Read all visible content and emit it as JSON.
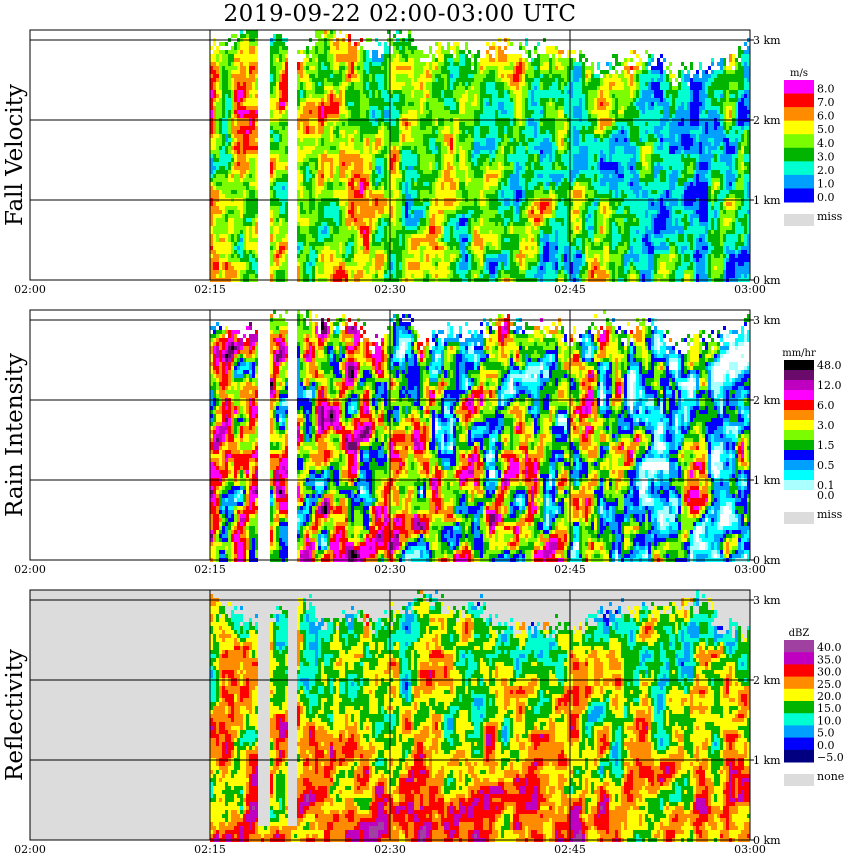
{
  "title": "2019-09-22   02:00-03:00 UTC",
  "chart_data": [
    {
      "type": "heatmap",
      "ylabel": "Fall Velocity",
      "x_ticks": [
        "02:00",
        "02:15",
        "02:30",
        "02:45",
        "03:00"
      ],
      "height_ticks": [
        "0 km",
        "1 km",
        "2 km",
        "3 km"
      ],
      "height_range_km": [
        0,
        3.15
      ],
      "colorbar": {
        "unit": "m/s",
        "entries": [
          {
            "label": "8.0",
            "color": "#ff00ff"
          },
          {
            "label": "7.0",
            "color": "#ff0000"
          },
          {
            "label": "6.0",
            "color": "#ff8c00"
          },
          {
            "label": "5.0",
            "color": "#ffff00"
          },
          {
            "label": "4.0",
            "color": "#7cfc00"
          },
          {
            "label": "3.0",
            "color": "#00b400"
          },
          {
            "label": "2.0",
            "color": "#00ffd0"
          },
          {
            "label": "1.0",
            "color": "#00a0ff"
          },
          {
            "label": "0.0",
            "color": "#0000ff"
          }
        ],
        "missing": {
          "label": "miss",
          "color": "#dcdcdc"
        }
      },
      "precip_start": "02:15"
    },
    {
      "type": "heatmap",
      "ylabel": "Rain Intensity",
      "x_ticks": [
        "02:00",
        "02:15",
        "02:30",
        "02:45",
        "03:00"
      ],
      "height_ticks": [
        "0 km",
        "1 km",
        "2 km",
        "3 km"
      ],
      "height_range_km": [
        0,
        3.15
      ],
      "colorbar": {
        "unit": "mm/hr",
        "entries": [
          {
            "label": "48.0",
            "color": "#000000"
          },
          {
            "label": "",
            "color": "#6a0a6a"
          },
          {
            "label": "12.0",
            "color": "#c000c0"
          },
          {
            "label": "",
            "color": "#ff00ff"
          },
          {
            "label": "6.0",
            "color": "#ff0000"
          },
          {
            "label": "",
            "color": "#ff8c00"
          },
          {
            "label": "3.0",
            "color": "#ffff00"
          },
          {
            "label": "",
            "color": "#7cfc00"
          },
          {
            "label": "1.5",
            "color": "#00b400"
          },
          {
            "label": "",
            "color": "#0000ff"
          },
          {
            "label": "0.5",
            "color": "#00a0ff"
          },
          {
            "label": "",
            "color": "#00ffff"
          },
          {
            "label": "0.1",
            "color": "#aaffff"
          },
          {
            "label": "0.0",
            "color": "#ffffff"
          }
        ],
        "missing": {
          "label": "miss",
          "color": "#dcdcdc"
        }
      },
      "precip_start": "02:15"
    },
    {
      "type": "heatmap",
      "ylabel": "Reflectivity",
      "x_ticks": [
        "02:00",
        "02:15",
        "02:30",
        "02:45",
        "03:00"
      ],
      "height_ticks": [
        "0 km",
        "1 km",
        "2 km",
        "3 km"
      ],
      "height_range_km": [
        0,
        3.15
      ],
      "colorbar": {
        "unit": "dBZ",
        "entries": [
          {
            "label": "40.0",
            "color": "#a040a0"
          },
          {
            "label": "35.0",
            "color": "#c000c0"
          },
          {
            "label": "30.0",
            "color": "#ff0000"
          },
          {
            "label": "25.0",
            "color": "#ff8c00"
          },
          {
            "label": "20.0",
            "color": "#ffff00"
          },
          {
            "label": "15.0",
            "color": "#00b400"
          },
          {
            "label": "10.0",
            "color": "#00ffd0"
          },
          {
            "label": "5.0",
            "color": "#00a0ff"
          },
          {
            "label": "0.0",
            "color": "#0000ff"
          },
          {
            "label": "−5.0",
            "color": "#000080"
          }
        ],
        "missing": {
          "label": "none",
          "color": "#dcdcdc"
        }
      },
      "precip_start": "02:15"
    }
  ]
}
